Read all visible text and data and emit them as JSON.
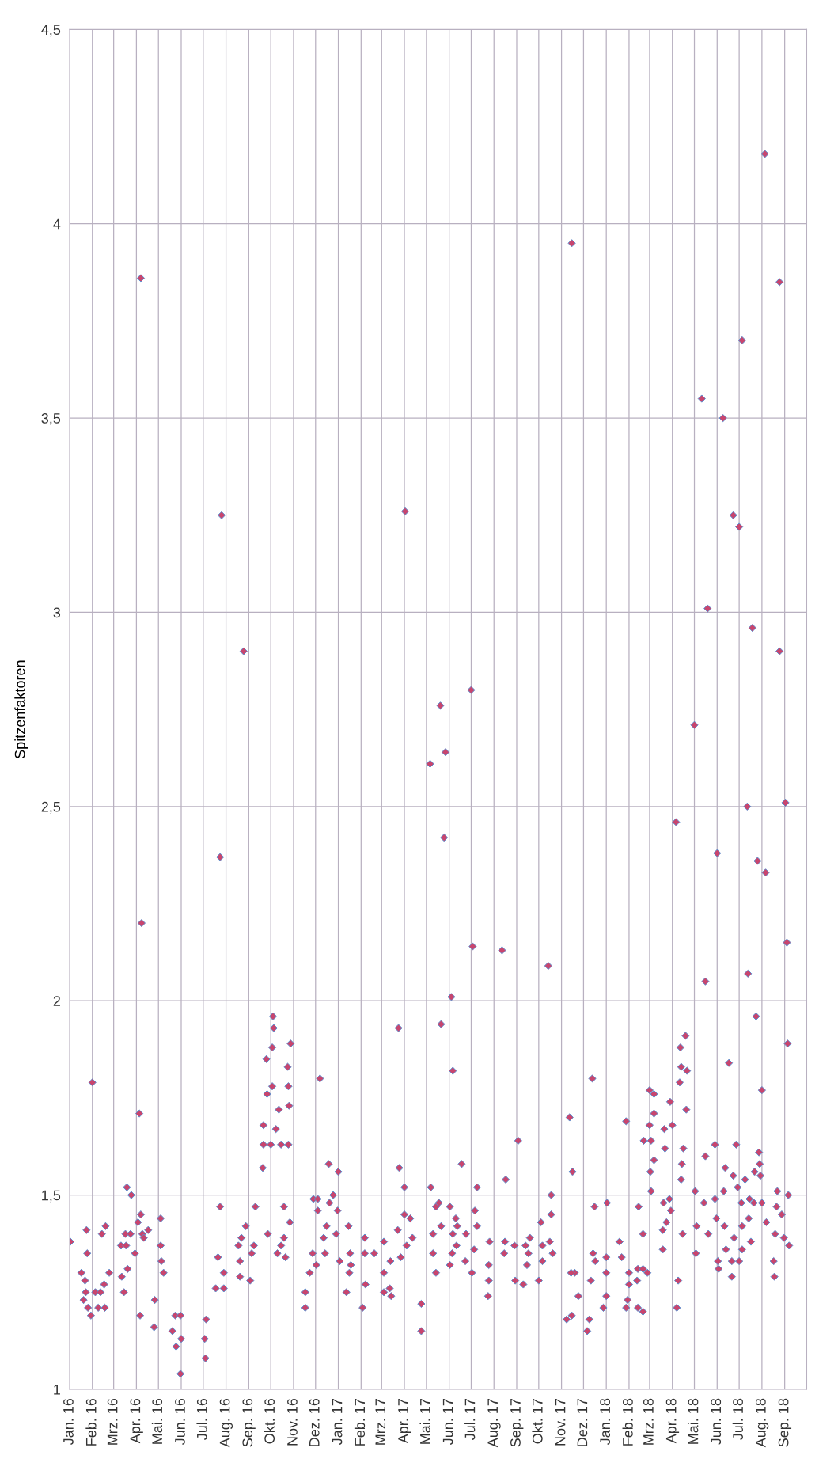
{
  "chart_data": {
    "type": "scatter",
    "ylabel": "Spitzenfaktoren",
    "marker": "diamond",
    "grid": true,
    "xlim": [
      "2016-01-01",
      "2018-10-01"
    ],
    "xticks": [
      {
        "value": "2016-01-01",
        "label": "Jan. 16"
      },
      {
        "value": "2016-02-01",
        "label": "Feb. 16"
      },
      {
        "value": "2016-03-01",
        "label": "Mrz. 16"
      },
      {
        "value": "2016-04-01",
        "label": "Apr. 16"
      },
      {
        "value": "2016-05-01",
        "label": "Mai. 16"
      },
      {
        "value": "2016-06-01",
        "label": "Jun. 16"
      },
      {
        "value": "2016-07-01",
        "label": "Jul. 16"
      },
      {
        "value": "2016-08-01",
        "label": "Aug. 16"
      },
      {
        "value": "2016-09-01",
        "label": "Sep. 16"
      },
      {
        "value": "2016-10-01",
        "label": "Okt. 16"
      },
      {
        "value": "2016-11-01",
        "label": "Nov. 16"
      },
      {
        "value": "2016-12-01",
        "label": "Dez. 16"
      },
      {
        "value": "2017-01-01",
        "label": "Jan. 17"
      },
      {
        "value": "2017-02-01",
        "label": "Feb. 17"
      },
      {
        "value": "2017-03-01",
        "label": "Mrz. 17"
      },
      {
        "value": "2017-04-01",
        "label": "Apr. 17"
      },
      {
        "value": "2017-05-01",
        "label": "Mai. 17"
      },
      {
        "value": "2017-06-01",
        "label": "Jun. 17"
      },
      {
        "value": "2017-07-01",
        "label": "Jul. 17"
      },
      {
        "value": "2017-08-01",
        "label": "Aug. 17"
      },
      {
        "value": "2017-09-01",
        "label": "Sep. 17"
      },
      {
        "value": "2017-10-01",
        "label": "Okt. 17"
      },
      {
        "value": "2017-11-01",
        "label": "Nov. 17"
      },
      {
        "value": "2017-12-01",
        "label": "Dez. 17"
      },
      {
        "value": "2018-01-01",
        "label": "Jan. 18"
      },
      {
        "value": "2018-02-01",
        "label": "Feb. 18"
      },
      {
        "value": "2018-03-01",
        "label": "Mrz. 18"
      },
      {
        "value": "2018-04-01",
        "label": "Apr. 18"
      },
      {
        "value": "2018-05-01",
        "label": "Mai. 18"
      },
      {
        "value": "2018-06-01",
        "label": "Jun. 18"
      },
      {
        "value": "2018-07-01",
        "label": "Jul. 18"
      },
      {
        "value": "2018-08-01",
        "label": "Aug. 18"
      },
      {
        "value": "2018-09-01",
        "label": "Sep. 18"
      }
    ],
    "ylim": [
      1,
      4.5
    ],
    "yticks": [
      1,
      {
        "value": 1.5,
        "label": "1,5"
      },
      2,
      {
        "value": 2.5,
        "label": "2,5"
      },
      3,
      {
        "value": 3.5,
        "label": "3,5"
      },
      4,
      {
        "value": 4.5,
        "label": "4,5"
      }
    ],
    "series": [
      {
        "color": "#c8456e",
        "x": [
          "2016-01-02",
          "2016-01-17",
          "2016-01-20",
          "2016-01-22",
          "2016-01-23",
          "2016-01-24",
          "2016-01-25",
          "2016-01-26",
          "2016-01-30",
          "2016-02-01",
          "2016-02-05",
          "2016-02-09",
          "2016-02-12",
          "2016-02-14",
          "2016-02-17",
          "2016-02-18",
          "2016-02-19",
          "2016-02-24",
          "2016-03-11",
          "2016-03-12",
          "2016-03-15",
          "2016-03-18",
          "2016-03-17",
          "2016-03-19",
          "2016-03-20",
          "2016-03-24",
          "2016-03-25",
          "2016-03-30",
          "2016-04-03",
          "2016-04-05",
          "2016-04-06",
          "2016-04-07",
          "2016-04-07",
          "2016-04-08",
          "2016-04-09",
          "2016-04-11",
          "2016-04-17",
          "2016-04-25",
          "2016-04-26",
          "2016-05-04",
          "2016-05-04",
          "2016-05-05",
          "2016-05-08",
          "2016-05-20",
          "2016-05-24",
          "2016-05-25",
          "2016-05-31",
          "2016-05-31",
          "2016-06-01",
          "2016-07-03",
          "2016-07-04",
          "2016-07-05",
          "2016-07-18",
          "2016-07-21",
          "2016-07-24",
          "2016-07-24",
          "2016-07-26",
          "2016-07-29",
          "2016-07-29",
          "2016-08-18",
          "2016-08-20",
          "2016-08-20",
          "2016-08-22",
          "2016-08-25",
          "2016-08-28",
          "2016-09-03",
          "2016-09-05",
          "2016-09-08",
          "2016-09-10",
          "2016-09-20",
          "2016-09-21",
          "2016-09-21",
          "2016-09-25",
          "2016-09-26",
          "2016-09-27",
          "2016-10-01",
          "2016-10-03",
          "2016-10-04",
          "2016-10-05",
          "2016-10-03",
          "2016-10-08",
          "2016-10-10",
          "2016-10-12",
          "2016-10-15",
          "2016-10-15",
          "2016-10-19",
          "2016-10-19",
          "2016-10-21",
          "2016-10-24",
          "2016-10-25",
          "2016-10-26",
          "2016-10-25",
          "2016-10-27",
          "2016-10-28",
          "2016-11-17",
          "2016-11-17",
          "2016-11-23",
          "2016-11-27",
          "2016-11-28",
          "2016-12-02",
          "2016-12-04",
          "2016-12-04",
          "2016-12-07",
          "2016-12-12",
          "2016-12-14",
          "2016-12-16",
          "2016-12-19",
          "2016-12-20",
          "2016-12-25",
          "2016-12-29",
          "2016-12-31",
          "2017-01-01",
          "2017-01-03",
          "2017-01-12",
          "2017-01-15",
          "2017-01-16",
          "2017-01-17",
          "2017-01-18",
          "2017-02-03",
          "2017-02-06",
          "2017-02-06",
          "2017-02-07",
          "2017-02-19",
          "2017-03-04",
          "2017-03-04",
          "2017-03-04",
          "2017-03-12",
          "2017-03-14",
          "2017-03-13",
          "2017-03-23",
          "2017-03-24",
          "2017-03-25",
          "2017-03-27",
          "2017-04-01",
          "2017-04-01",
          "2017-04-02",
          "2017-04-04",
          "2017-04-09",
          "2017-04-12",
          "2017-04-24",
          "2017-04-24",
          "2017-05-06",
          "2017-05-07",
          "2017-05-10",
          "2017-05-10",
          "2017-05-14",
          "2017-05-14",
          "2017-05-18",
          "2017-05-20",
          "2017-05-21",
          "2017-05-21",
          "2017-05-25",
          "2017-05-27",
          "2017-06-02",
          "2017-06-02",
          "2017-06-04",
          "2017-06-06",
          "2017-06-06",
          "2017-06-05",
          "2017-06-10",
          "2017-06-12",
          "2017-06-11",
          "2017-06-18",
          "2017-06-24",
          "2017-06-23",
          "2017-07-01",
          "2017-07-02",
          "2017-07-03",
          "2017-07-06",
          "2017-07-05",
          "2017-07-09",
          "2017-07-09",
          "2017-07-26",
          "2017-07-25",
          "2017-07-25",
          "2017-07-24",
          "2017-08-12",
          "2017-08-17",
          "2017-08-16",
          "2017-08-15",
          "2017-08-29",
          "2017-08-30",
          "2017-09-03",
          "2017-09-10",
          "2017-09-13",
          "2017-09-15",
          "2017-09-17",
          "2017-09-19",
          "2017-10-01",
          "2017-10-04",
          "2017-10-06",
          "2017-10-06",
          "2017-10-14",
          "2017-10-18",
          "2017-10-18",
          "2017-10-16",
          "2017-10-20",
          "2017-11-08",
          "2017-11-12",
          "2017-11-15",
          "2017-11-16",
          "2017-11-19",
          "2017-11-14",
          "2017-11-15",
          "2017-11-24",
          "2017-12-06",
          "2017-12-09",
          "2017-12-11",
          "2017-12-13",
          "2017-12-14",
          "2017-12-16",
          "2017-12-17",
          "2017-12-28",
          "2018-01-02",
          "2018-01-01",
          "2018-01-01",
          "2018-01-01",
          "2018-01-19",
          "2018-01-22",
          "2018-01-28",
          "2018-01-28",
          "2018-01-30",
          "2018-02-01",
          "2018-02-01",
          "2018-02-13",
          "2018-02-12",
          "2018-02-13",
          "2018-02-14",
          "2018-02-20",
          "2018-02-20",
          "2018-02-20",
          "2018-02-21",
          "2018-02-26",
          "2018-03-01",
          "2018-03-01",
          "2018-03-02",
          "2018-03-03",
          "2018-03-03",
          "2018-03-07",
          "2018-03-07",
          "2018-03-07",
          "2018-03-19",
          "2018-03-19",
          "2018-03-20",
          "2018-03-21",
          "2018-03-22",
          "2018-03-24",
          "2018-03-28",
          "2018-03-29",
          "2018-03-30",
          "2018-04-01",
          "2018-04-06",
          "2018-04-09",
          "2018-04-07",
          "2018-04-12",
          "2018-04-13",
          "2018-04-11",
          "2018-04-15",
          "2018-04-16",
          "2018-04-14",
          "2018-04-13",
          "2018-04-19",
          "2018-04-21",
          "2018-04-20",
          "2018-05-01",
          "2018-05-02",
          "2018-05-04",
          "2018-05-03",
          "2018-05-11",
          "2018-05-14",
          "2018-05-16",
          "2018-05-16",
          "2018-05-19",
          "2018-05-20",
          "2018-05-29",
          "2018-05-29",
          "2018-05-31",
          "2018-06-01",
          "2018-06-02",
          "2018-06-03",
          "2018-06-09",
          "2018-06-10",
          "2018-06-12",
          "2018-06-11",
          "2018-06-13",
          "2018-06-17",
          "2018-06-21",
          "2018-06-21",
          "2018-06-23",
          "2018-06-23",
          "2018-06-24",
          "2018-06-27",
          "2018-06-29",
          "2018-07-01",
          "2018-07-04",
          "2018-07-05",
          "2018-07-05",
          "2018-07-05",
          "2018-07-01",
          "2018-07-09",
          "2018-07-12",
          "2018-07-13",
          "2018-07-15",
          "2018-07-14",
          "2018-07-17",
          "2018-07-19",
          "2018-07-22",
          "2018-07-21",
          "2018-07-24",
          "2018-07-26",
          "2018-07-28",
          "2018-07-29",
          "2018-07-30",
          "2018-08-01",
          "2018-08-01",
          "2018-08-05",
          "2018-08-06",
          "2018-08-07",
          "2018-08-17",
          "2018-08-18",
          "2018-08-19",
          "2018-08-22",
          "2018-08-21",
          "2018-08-25",
          "2018-08-25",
          "2018-08-28",
          "2018-08-31",
          "2018-09-02",
          "2018-09-04",
          "2018-09-05",
          "2018-09-06",
          "2018-09-07"
        ],
        "values": [
          1.38,
          1.3,
          1.23,
          1.28,
          1.25,
          1.41,
          1.35,
          1.21,
          1.19,
          1.79,
          1.25,
          1.21,
          1.25,
          1.4,
          1.27,
          1.21,
          1.42,
          1.3,
          1.37,
          1.29,
          1.25,
          1.37,
          1.4,
          1.52,
          1.31,
          1.4,
          1.5,
          1.35,
          1.43,
          1.71,
          1.19,
          1.45,
          3.86,
          2.2,
          1.4,
          1.39,
          1.41,
          1.16,
          1.23,
          1.44,
          1.37,
          1.33,
          1.3,
          1.15,
          1.19,
          1.11,
          1.19,
          1.04,
          1.13,
          1.13,
          1.08,
          1.18,
          1.26,
          1.34,
          1.47,
          2.37,
          3.25,
          1.3,
          1.26,
          1.37,
          1.33,
          1.29,
          1.39,
          2.9,
          1.42,
          1.28,
          1.35,
          1.37,
          1.47,
          1.57,
          1.68,
          1.63,
          1.85,
          1.76,
          1.4,
          1.63,
          1.78,
          1.96,
          1.93,
          1.88,
          1.67,
          1.35,
          1.72,
          1.63,
          1.37,
          1.47,
          1.39,
          1.34,
          1.83,
          1.63,
          1.73,
          1.78,
          1.43,
          1.89,
          1.25,
          1.21,
          1.3,
          1.35,
          1.49,
          1.32,
          1.49,
          1.46,
          1.8,
          1.39,
          1.35,
          1.42,
          1.58,
          1.48,
          1.5,
          1.4,
          1.46,
          1.56,
          1.33,
          1.25,
          1.42,
          1.3,
          1.35,
          1.32,
          1.21,
          1.39,
          1.35,
          1.27,
          1.35,
          1.38,
          1.3,
          1.25,
          1.26,
          1.24,
          1.33,
          1.41,
          1.93,
          1.57,
          1.34,
          1.52,
          1.45,
          3.26,
          1.37,
          1.44,
          1.39,
          1.22,
          1.15,
          2.61,
          1.52,
          1.4,
          1.35,
          1.3,
          1.47,
          1.48,
          2.76,
          1.94,
          1.42,
          2.42,
          2.64,
          1.47,
          1.32,
          2.01,
          1.82,
          1.4,
          1.35,
          1.44,
          1.42,
          1.37,
          1.58,
          1.4,
          1.33,
          2.8,
          1.3,
          2.14,
          1.46,
          1.36,
          1.52,
          1.42,
          1.38,
          1.32,
          1.28,
          1.24,
          2.13,
          1.54,
          1.38,
          1.35,
          1.37,
          1.28,
          1.64,
          1.27,
          1.37,
          1.32,
          1.35,
          1.39,
          1.28,
          1.43,
          1.37,
          1.33,
          2.09,
          1.5,
          1.45,
          1.38,
          1.35,
          1.18,
          1.7,
          3.95,
          1.56,
          1.3,
          1.3,
          1.19,
          1.24,
          1.15,
          1.18,
          1.28,
          1.8,
          1.35,
          1.47,
          1.33,
          1.21,
          1.48,
          1.34,
          1.3,
          1.24,
          1.38,
          1.34,
          1.69,
          1.21,
          1.23,
          1.3,
          1.27,
          1.31,
          1.28,
          1.21,
          1.47,
          1.4,
          1.31,
          1.2,
          1.64,
          1.3,
          1.77,
          1.68,
          1.56,
          1.64,
          1.51,
          1.76,
          1.71,
          1.59,
          1.41,
          1.36,
          1.48,
          1.67,
          1.62,
          1.43,
          1.49,
          1.74,
          1.46,
          1.68,
          2.46,
          1.28,
          1.21,
          1.88,
          1.83,
          1.79,
          1.4,
          1.62,
          1.58,
          1.54,
          1.91,
          1.82,
          1.72,
          2.71,
          1.51,
          1.42,
          1.35,
          3.55,
          1.48,
          2.05,
          1.6,
          3.01,
          1.4,
          1.63,
          1.49,
          1.44,
          2.38,
          1.33,
          1.31,
          3.5,
          1.51,
          1.57,
          1.42,
          1.36,
          1.84,
          1.33,
          1.29,
          1.55,
          3.25,
          1.39,
          1.63,
          1.52,
          3.22,
          1.48,
          3.7,
          1.42,
          1.36,
          1.33,
          1.54,
          2.5,
          2.07,
          1.49,
          1.44,
          1.38,
          2.96,
          1.56,
          1.48,
          1.96,
          2.36,
          1.61,
          1.58,
          1.55,
          1.77,
          1.48,
          4.18,
          2.33,
          1.43,
          1.33,
          1.29,
          1.4,
          1.51,
          1.47,
          3.85,
          2.9,
          1.45,
          1.39,
          2.51,
          2.15,
          1.89,
          1.5,
          1.37
        ]
      }
    ]
  }
}
